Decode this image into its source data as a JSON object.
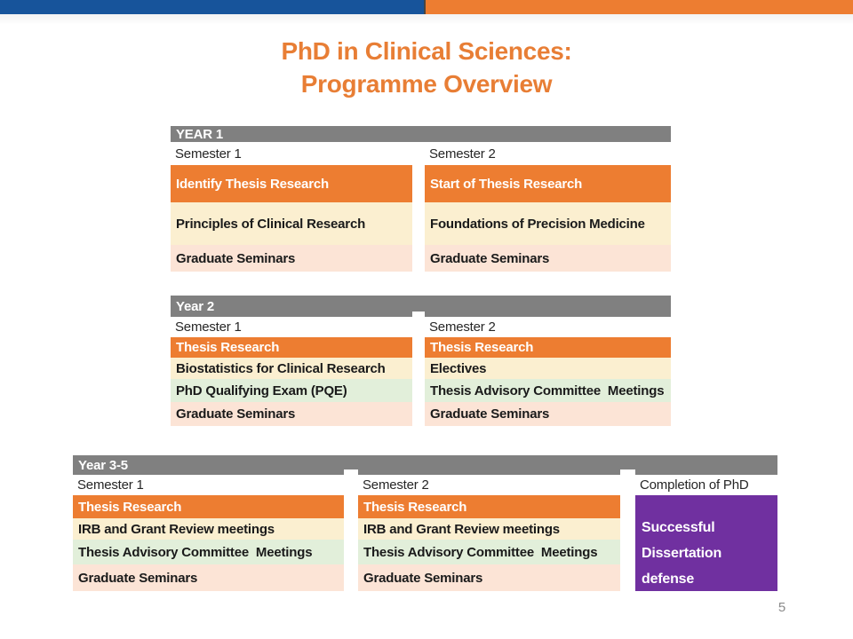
{
  "slide": {
    "title_line1": "PhD in Clinical Sciences:",
    "title_line2": "Programme Overview",
    "page_number": "5"
  },
  "colors": {
    "top_bar_blue": "#17549B",
    "top_bar_orange": "#ED7D31",
    "top_bar_divider": "#454545",
    "title_orange": "#E87E35",
    "header_gray": "#808080",
    "row_orange": "#ED7D31",
    "row_cream": "#FBEFD0",
    "row_green": "#E2EFDA",
    "row_pink": "#FCE4D6",
    "cell_purple": "#7030A0",
    "page_number_gray": "#8A8A8A"
  },
  "tables": [
    {
      "id": "year1",
      "header": "YEAR 1",
      "columns": [
        {
          "semester": "Semester 1",
          "rows": [
            {
              "text": "Identify Thesis Research",
              "type": "orange"
            },
            {
              "text": "Principles of Clinical Research",
              "type": "cream"
            },
            {
              "text": "Graduate Seminars",
              "type": "pink"
            }
          ]
        },
        {
          "semester": "Semester 2",
          "rows": [
            {
              "text": "Start of Thesis Research",
              "type": "orange"
            },
            {
              "text": "Foundations of Precision Medicine",
              "type": "cream"
            },
            {
              "text": "Graduate Seminars",
              "type": "pink"
            }
          ]
        }
      ]
    },
    {
      "id": "year2",
      "header": "Year 2",
      "columns": [
        {
          "semester": "Semester 1",
          "rows": [
            {
              "text": "Thesis Research",
              "type": "orange"
            },
            {
              "text": "Biostatistics for Clinical Research",
              "type": "cream"
            },
            {
              "text": "PhD Qualifying Exam (PQE)",
              "type": "green"
            },
            {
              "text": "Graduate Seminars",
              "type": "pink"
            }
          ]
        },
        {
          "semester": "Semester 2",
          "rows": [
            {
              "text": "Thesis Research",
              "type": "orange"
            },
            {
              "text": "Electives",
              "type": "cream"
            },
            {
              "text": "Thesis Advisory Committee  Meetings",
              "type": "green"
            },
            {
              "text": "Graduate Seminars",
              "type": "pink"
            }
          ]
        }
      ]
    },
    {
      "id": "year35",
      "header": "Year 3-5",
      "columns": [
        {
          "semester": "Semester 1",
          "rows": [
            {
              "text": "Thesis Research",
              "type": "orange"
            },
            {
              "text": "IRB and Grant Review meetings",
              "type": "cream"
            },
            {
              "text": "Thesis Advisory Committee  Meetings",
              "type": "green"
            },
            {
              "text": "Graduate Seminars",
              "type": "pink"
            }
          ]
        },
        {
          "semester": "Semester 2",
          "rows": [
            {
              "text": "Thesis Research",
              "type": "orange"
            },
            {
              "text": "IRB and Grant Review meetings",
              "type": "cream"
            },
            {
              "text": "Thesis Advisory Committee  Meetings",
              "type": "green"
            },
            {
              "text": "Graduate Seminars",
              "type": "pink"
            }
          ]
        },
        {
          "semester": "Completion of PhD",
          "rows": [
            {
              "text": "Successful Dissertation defense",
              "type": "purple"
            }
          ]
        }
      ]
    }
  ]
}
